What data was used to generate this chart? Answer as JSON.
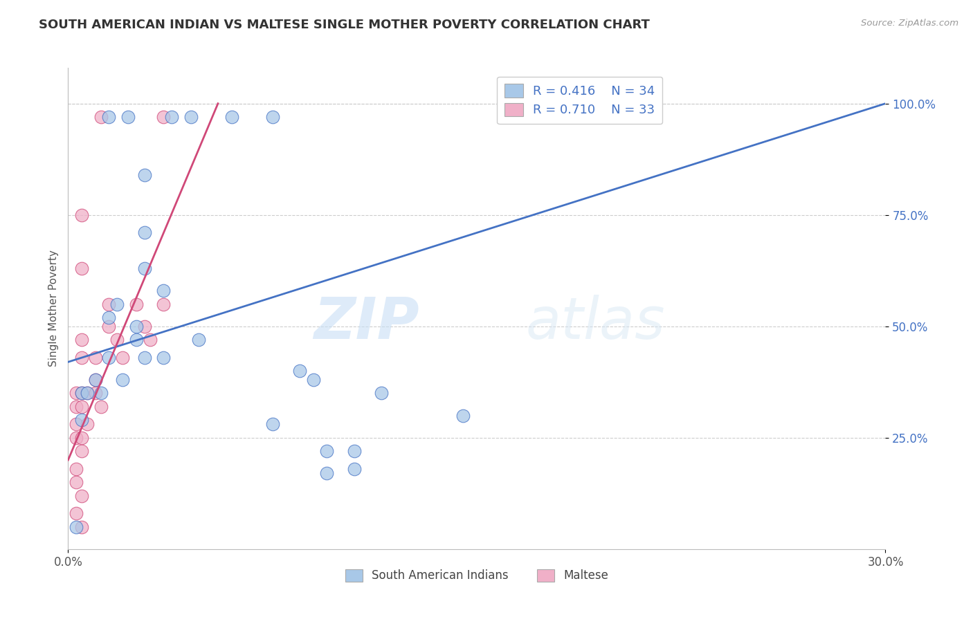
{
  "title": "SOUTH AMERICAN INDIAN VS MALTESE SINGLE MOTHER POVERTY CORRELATION CHART",
  "source": "Source: ZipAtlas.com",
  "ylabel_label": "Single Mother Poverty",
  "legend_labels": [
    "South American Indians",
    "Maltese"
  ],
  "blue_R": "0.416",
  "blue_N": "34",
  "pink_R": "0.710",
  "pink_N": "33",
  "blue_color": "#a8c8e8",
  "pink_color": "#f0b0c8",
  "blue_line_color": "#4472c4",
  "pink_line_color": "#d04878",
  "watermark_zip": "ZIP",
  "watermark_atlas": "atlas",
  "blue_dots": [
    [
      1.5,
      97.0
    ],
    [
      2.2,
      97.0
    ],
    [
      3.8,
      97.0
    ],
    [
      4.5,
      97.0
    ],
    [
      6.0,
      97.0
    ],
    [
      7.5,
      97.0
    ],
    [
      2.8,
      84.0
    ],
    [
      2.8,
      71.0
    ],
    [
      2.8,
      63.0
    ],
    [
      1.8,
      55.0
    ],
    [
      3.5,
      58.0
    ],
    [
      1.5,
      52.0
    ],
    [
      2.5,
      50.0
    ],
    [
      2.5,
      47.0
    ],
    [
      4.8,
      47.0
    ],
    [
      1.5,
      43.0
    ],
    [
      2.8,
      43.0
    ],
    [
      3.5,
      43.0
    ],
    [
      1.0,
      38.0
    ],
    [
      2.0,
      38.0
    ],
    [
      0.5,
      35.0
    ],
    [
      0.7,
      35.0
    ],
    [
      1.2,
      35.0
    ],
    [
      8.5,
      40.0
    ],
    [
      9.0,
      38.0
    ],
    [
      11.5,
      35.0
    ],
    [
      14.5,
      30.0
    ],
    [
      0.5,
      29.0
    ],
    [
      7.5,
      28.0
    ],
    [
      9.5,
      22.0
    ],
    [
      10.5,
      22.0
    ],
    [
      0.3,
      5.0
    ],
    [
      9.5,
      17.0
    ],
    [
      10.5,
      18.0
    ]
  ],
  "pink_dots": [
    [
      1.2,
      97.0
    ],
    [
      3.5,
      97.0
    ],
    [
      0.5,
      75.0
    ],
    [
      0.5,
      63.0
    ],
    [
      1.5,
      55.0
    ],
    [
      2.5,
      55.0
    ],
    [
      3.5,
      55.0
    ],
    [
      1.5,
      50.0
    ],
    [
      2.8,
      50.0
    ],
    [
      0.5,
      47.0
    ],
    [
      1.8,
      47.0
    ],
    [
      3.0,
      47.0
    ],
    [
      0.5,
      43.0
    ],
    [
      1.0,
      43.0
    ],
    [
      2.0,
      43.0
    ],
    [
      1.0,
      38.0
    ],
    [
      0.3,
      35.0
    ],
    [
      0.5,
      35.0
    ],
    [
      0.7,
      35.0
    ],
    [
      1.0,
      35.0
    ],
    [
      0.3,
      32.0
    ],
    [
      0.5,
      32.0
    ],
    [
      1.2,
      32.0
    ],
    [
      0.3,
      28.0
    ],
    [
      0.7,
      28.0
    ],
    [
      0.3,
      25.0
    ],
    [
      0.5,
      25.0
    ],
    [
      0.5,
      22.0
    ],
    [
      0.3,
      18.0
    ],
    [
      0.3,
      15.0
    ],
    [
      0.5,
      12.0
    ],
    [
      0.3,
      8.0
    ],
    [
      0.5,
      5.0
    ]
  ],
  "blue_line": {
    "x0": 0,
    "y0": 42.0,
    "x1": 30,
    "y1": 100.0
  },
  "pink_line": {
    "x0": 0,
    "y0": 20.0,
    "x1": 5.5,
    "y1": 100.0
  },
  "xlim": [
    0,
    30
  ],
  "ylim": [
    0,
    108
  ],
  "yticks": [
    25,
    50,
    75,
    100
  ],
  "xticks": [
    0,
    30
  ],
  "grid_color": "#cccccc",
  "background_color": "#ffffff",
  "dot_size": 180
}
